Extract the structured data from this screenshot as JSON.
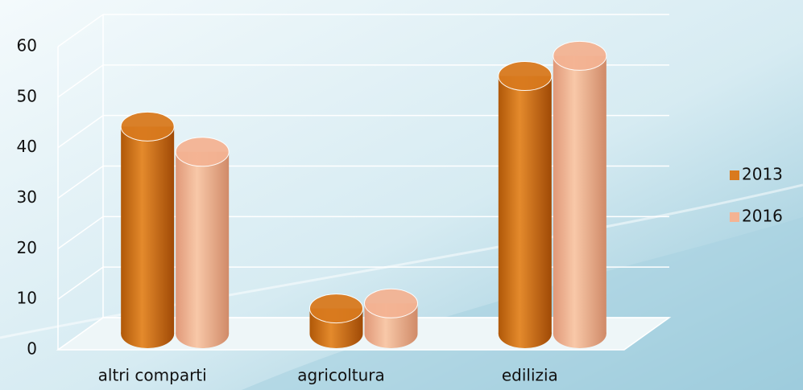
{
  "chart_data": {
    "type": "bar3d",
    "categories": [
      "altri comparti",
      "agricoltura",
      "edilizia"
    ],
    "series": [
      {
        "name": "2013",
        "color": "#d97a1e",
        "values": [
          41,
          5,
          51
        ]
      },
      {
        "name": "2016",
        "color": "#f4b393",
        "values": [
          36,
          6,
          55
        ]
      }
    ],
    "ylim": [
      0,
      60
    ],
    "yticks": [
      0,
      10,
      20,
      30,
      40,
      50,
      60
    ],
    "grid": true,
    "legend": "right"
  }
}
